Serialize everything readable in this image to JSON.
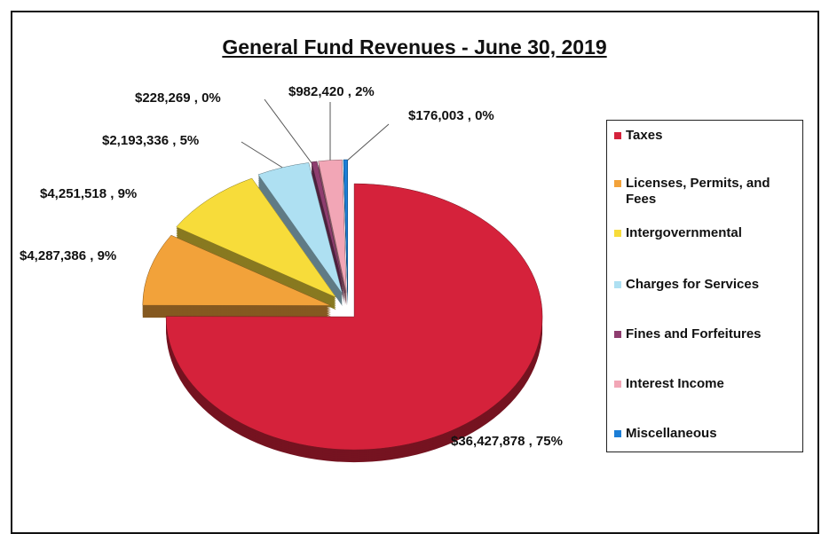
{
  "chart_data": {
    "type": "pie",
    "title": "General Fund Revenues - June 30, 2019",
    "categories": [
      "Taxes",
      "Licenses, Permits, and Fees",
      "Intergovernmental",
      "Charges for Services",
      "Fines and Forfeitures",
      "Interest Income",
      "Miscellaneous"
    ],
    "values": [
      36427878,
      4287386,
      4251518,
      2193336,
      228269,
      982420,
      176003
    ],
    "value_labels": [
      "$36,427,878 , 75%",
      "$4,287,386 , 9%",
      "$4,251,518 , 9%",
      "$2,193,336 , 5%",
      "$228,269 , 0%",
      "$982,420 , 2%",
      "$176,003 , 0%"
    ],
    "colors": [
      "#d5223b",
      "#f2a23a",
      "#f7dc3a",
      "#aee0f2",
      "#8e3d6f",
      "#f2a6b6",
      "#1c7ed6"
    ],
    "legend": "right"
  }
}
